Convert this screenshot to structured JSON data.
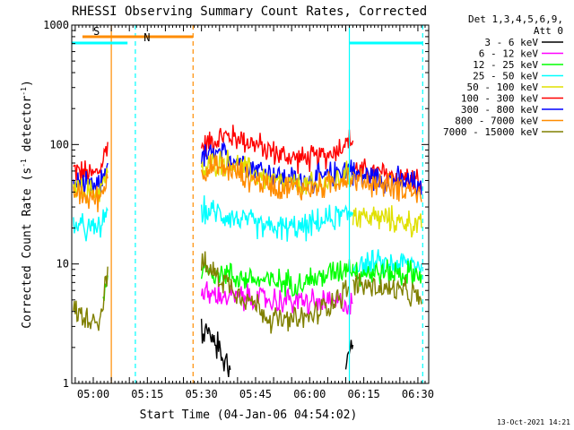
{
  "chart_data": {
    "type": "line",
    "title": "RHESSI Observing Summary Count Rates, Corrected",
    "ylabel": "Corrected Count Rate (s",
    "ylabel_sup1": "-1",
    "ylabel_mid": " detector",
    "ylabel_sup2": "-1",
    "ylabel_end": ")",
    "xlabel": "Start Time (04-Jan-06 04:54:02)",
    "footer": "13-Oct-2021 14:21",
    "ylim": [
      1,
      1000
    ],
    "yscale": "log",
    "yticks": [
      {
        "value": 1,
        "label": "1"
      },
      {
        "value": 10,
        "label": "10"
      },
      {
        "value": 100,
        "label": "100"
      },
      {
        "value": 1000,
        "label": "1000"
      }
    ],
    "xlim": [
      "04:54:02",
      "06:33:00"
    ],
    "xticks": [
      {
        "time": "05:00",
        "label": "05:00"
      },
      {
        "time": "05:15",
        "label": "05:15"
      },
      {
        "time": "05:30",
        "label": "05:30"
      },
      {
        "time": "05:45",
        "label": "05:45"
      },
      {
        "time": "06:00",
        "label": "06:00"
      },
      {
        "time": "06:15",
        "label": "06:15"
      },
      {
        "time": "06:30",
        "label": "06:30"
      }
    ],
    "legend": {
      "placement": "right",
      "header": [
        "Det 1,3,4,5,6,9,",
        "Att 0"
      ],
      "entries": [
        {
          "name": "3 - 6 keV",
          "color": "#000000"
        },
        {
          "name": "6 - 12 keV",
          "color": "#ff00ff"
        },
        {
          "name": "12 - 25 keV",
          "color": "#00ff00"
        },
        {
          "name": "25 - 50 keV",
          "color": "#00ffff"
        },
        {
          "name": "50 - 100 keV",
          "color": "#e0e000"
        },
        {
          "name": "100 - 300 keV",
          "color": "#ff0000"
        },
        {
          "name": "300 - 800 keV",
          "color": "#0000ff"
        },
        {
          "name": "800 - 7000 keV",
          "color": "#ff8c00"
        },
        {
          "name": "7000 - 15000 keV",
          "color": "#808000"
        }
      ]
    },
    "flags": [
      {
        "label": "S",
        "color": "#ff8c00",
        "start": "04:57:00",
        "end": "05:27:40"
      },
      {
        "label": "N",
        "color": "#00ffff",
        "start": "04:54:02",
        "end": "05:09:30"
      },
      {
        "label": "",
        "color": "#00ffff",
        "start": "06:11:00",
        "end": "06:31:20"
      }
    ],
    "vlines": [
      {
        "time": "05:05:00",
        "color": "#ff8c00",
        "style": "solid"
      },
      {
        "time": "05:11:40",
        "color": "#00ffff",
        "style": "dashed"
      },
      {
        "time": "05:27:40",
        "color": "#ff8c00",
        "style": "dashed"
      },
      {
        "time": "06:11:00",
        "color": "#00ffff",
        "style": "solid"
      },
      {
        "time": "06:31:20",
        "color": "#00ffff",
        "style": "dashed"
      }
    ],
    "series": [
      {
        "name": "100 - 300 keV",
        "color": "#ff0000",
        "segments": [
          [
            [
              "04:54:30",
              62
            ],
            [
              "04:57",
              58
            ],
            [
              "05:00",
              56
            ],
            [
              "05:02",
              62
            ],
            [
              "05:03",
              80
            ],
            [
              "05:04",
              105
            ]
          ],
          [
            [
              "05:30",
              95
            ],
            [
              "05:33",
              108
            ],
            [
              "05:37",
              118
            ],
            [
              "05:41",
              112
            ],
            [
              "05:45",
              100
            ],
            [
              "05:49",
              88
            ],
            [
              "05:53",
              80
            ],
            [
              "05:57",
              76
            ],
            [
              "06:01",
              76
            ],
            [
              "06:05",
              82
            ],
            [
              "06:08",
              94
            ],
            [
              "06:10",
              104
            ],
            [
              "06:12",
              108
            ]
          ],
          [
            [
              "06:12",
              62
            ],
            [
              "06:16",
              58
            ],
            [
              "06:20",
              57
            ],
            [
              "06:24",
              55
            ],
            [
              "06:28",
              52
            ],
            [
              "06:30",
              48
            ],
            [
              "06:31",
              42
            ]
          ]
        ]
      },
      {
        "name": "300 - 800 keV",
        "color": "#0000ff",
        "segments": [
          [
            [
              "04:54:30",
              48
            ],
            [
              "04:57",
              45
            ],
            [
              "05:00",
              42
            ],
            [
              "05:02",
              45
            ],
            [
              "05:03",
              58
            ],
            [
              "05:04",
              70
            ]
          ],
          [
            [
              "05:30",
              78
            ],
            [
              "05:33",
              82
            ],
            [
              "05:37",
              80
            ],
            [
              "05:41",
              74
            ],
            [
              "05:45",
              64
            ],
            [
              "05:49",
              58
            ],
            [
              "05:53",
              52
            ],
            [
              "05:57",
              50
            ],
            [
              "06:01",
              50
            ],
            [
              "06:05",
              54
            ],
            [
              "06:08",
              60
            ],
            [
              "06:10",
              64
            ],
            [
              "06:12",
              66
            ]
          ],
          [
            [
              "06:12",
              56
            ],
            [
              "06:16",
              55
            ],
            [
              "06:20",
              52
            ],
            [
              "06:24",
              50
            ],
            [
              "06:28",
              48
            ],
            [
              "06:30",
              45
            ],
            [
              "06:31",
              38
            ]
          ]
        ]
      },
      {
        "name": "50 - 100 keV",
        "color": "#e0e000",
        "segments": [
          [
            [
              "04:54:30",
              44
            ],
            [
              "04:57",
              41
            ],
            [
              "05:00",
              40
            ],
            [
              "05:02",
              43
            ],
            [
              "05:03",
              50
            ],
            [
              "05:04",
              58
            ]
          ],
          [
            [
              "05:30",
              58
            ],
            [
              "05:33",
              68
            ],
            [
              "05:36",
              72
            ],
            [
              "05:40",
              66
            ],
            [
              "05:45",
              57
            ],
            [
              "05:49",
              50
            ],
            [
              "05:53",
              46
            ],
            [
              "05:57",
              45
            ],
            [
              "06:01",
              45
            ],
            [
              "06:05",
              48
            ],
            [
              "06:08",
              52
            ],
            [
              "06:10",
              55
            ],
            [
              "06:12",
              56
            ]
          ],
          [
            [
              "06:12",
              26
            ],
            [
              "06:16",
              25
            ],
            [
              "06:20",
              24
            ],
            [
              "06:24",
              23
            ],
            [
              "06:28",
              22
            ],
            [
              "06:30",
              21
            ],
            [
              "06:31",
              20
            ]
          ]
        ]
      },
      {
        "name": "800 - 7000 keV",
        "color": "#ff8c00",
        "segments": [
          [
            [
              "04:54:30",
              40
            ],
            [
              "04:57",
              37
            ],
            [
              "05:00",
              35
            ],
            [
              "05:02",
              37
            ],
            [
              "05:03",
              45
            ],
            [
              "05:04",
              52
            ]
          ],
          [
            [
              "05:30",
              60
            ],
            [
              "05:33",
              64
            ],
            [
              "05:37",
              62
            ],
            [
              "05:41",
              56
            ],
            [
              "05:45",
              50
            ],
            [
              "05:49",
              46
            ],
            [
              "05:53",
              44
            ],
            [
              "05:57",
              43
            ],
            [
              "06:01",
              43
            ],
            [
              "06:05",
              46
            ],
            [
              "06:08",
              50
            ],
            [
              "06:10",
              53
            ],
            [
              "06:12",
              54
            ]
          ],
          [
            [
              "06:12",
              50
            ],
            [
              "06:16",
              48
            ],
            [
              "06:20",
              46
            ],
            [
              "06:24",
              44
            ],
            [
              "06:28",
              42
            ],
            [
              "06:30",
              38
            ],
            [
              "06:31",
              33
            ]
          ]
        ]
      },
      {
        "name": "25 - 50 keV",
        "color": "#00ffff",
        "segments": [
          [
            [
              "04:54:30",
              22
            ],
            [
              "04:57",
              20
            ],
            [
              "05:00",
              19
            ],
            [
              "05:02",
              21
            ],
            [
              "05:03",
              24
            ],
            [
              "05:04",
              28
            ]
          ],
          [
            [
              "05:30",
              28
            ],
            [
              "05:34",
              27
            ],
            [
              "05:38",
              25
            ],
            [
              "05:42",
              23
            ],
            [
              "05:46",
              21
            ],
            [
              "05:50",
              20
            ],
            [
              "05:54",
              20
            ],
            [
              "05:58",
              20
            ],
            [
              "06:02",
              22
            ],
            [
              "06:06",
              24
            ],
            [
              "06:10",
              26
            ],
            [
              "06:12",
              27
            ]
          ],
          [
            [
              "06:12",
              10
            ],
            [
              "06:16",
              10
            ],
            [
              "06:20",
              10
            ],
            [
              "06:24",
              10
            ],
            [
              "06:28",
              10
            ],
            [
              "06:31",
              10
            ]
          ]
        ]
      },
      {
        "name": "12 - 25 keV",
        "color": "#00ff00",
        "segments": [
          [
            [
              "05:02:40",
              4.5
            ],
            [
              "05:03",
              5.5
            ],
            [
              "05:04",
              8
            ]
          ],
          [
            [
              "05:30",
              9
            ],
            [
              "05:34",
              8.6
            ],
            [
              "05:38",
              8
            ],
            [
              "05:42",
              7.6
            ],
            [
              "05:46",
              7.3
            ],
            [
              "05:50",
              7.1
            ],
            [
              "05:54",
              7.0
            ],
            [
              "05:58",
              7.1
            ],
            [
              "06:02",
              7.6
            ],
            [
              "06:06",
              8.3
            ],
            [
              "06:10",
              9.5
            ],
            [
              "06:12",
              10
            ]
          ],
          [
            [
              "06:12",
              8.5
            ],
            [
              "06:16",
              8.5
            ],
            [
              "06:20",
              8.4
            ],
            [
              "06:24",
              8.4
            ],
            [
              "06:28",
              8.3
            ],
            [
              "06:31",
              8.2
            ]
          ]
        ]
      },
      {
        "name": "6 - 12 keV",
        "color": "#ff00ff",
        "segments": [
          [
            [
              "05:30",
              5.6
            ],
            [
              "05:36",
              5.4
            ],
            [
              "05:42",
              5.2
            ],
            [
              "05:48",
              5.0
            ],
            [
              "05:54",
              4.9
            ],
            [
              "06:00",
              4.8
            ],
            [
              "06:06",
              4.7
            ],
            [
              "06:12",
              4.7
            ]
          ]
        ]
      },
      {
        "name": "7000 - 15000 keV",
        "color": "#808000",
        "segments": [
          [
            [
              "04:54:30",
              4.0
            ],
            [
              "04:57",
              3.7
            ],
            [
              "05:00",
              3.5
            ],
            [
              "05:02",
              3.6
            ],
            [
              "05:03",
              5.5
            ],
            [
              "05:04",
              9.5
            ]
          ],
          [
            [
              "05:30",
              10
            ],
            [
              "05:33",
              8.6
            ],
            [
              "05:37",
              7.0
            ],
            [
              "05:41",
              5.6
            ],
            [
              "05:45",
              4.6
            ],
            [
              "05:49",
              3.5
            ],
            [
              "05:53",
              3.3
            ],
            [
              "05:57",
              3.4
            ],
            [
              "06:01",
              3.7
            ],
            [
              "06:05",
              4.6
            ],
            [
              "06:09",
              5.6
            ],
            [
              "06:11",
              6.3
            ]
          ],
          [
            [
              "06:12",
              6.8
            ],
            [
              "06:16",
              6.6
            ],
            [
              "06:20",
              6.2
            ],
            [
              "06:24",
              6.0
            ],
            [
              "06:28",
              5.6
            ],
            [
              "06:30",
              5.2
            ],
            [
              "06:31",
              4.6
            ]
          ]
        ]
      },
      {
        "name": "3 - 6 keV",
        "color": "#000000",
        "segments": [
          [
            [
              "05:30",
              2.8
            ],
            [
              "05:32",
              2.6
            ],
            [
              "05:34",
              2.2
            ],
            [
              "05:36",
              1.6
            ],
            [
              "05:38",
              1.3
            ]
          ],
          [
            [
              "06:10",
              1.6
            ],
            [
              "06:11",
              1.9
            ],
            [
              "06:12",
              2.1
            ]
          ]
        ]
      }
    ],
    "noise": 0.1
  }
}
